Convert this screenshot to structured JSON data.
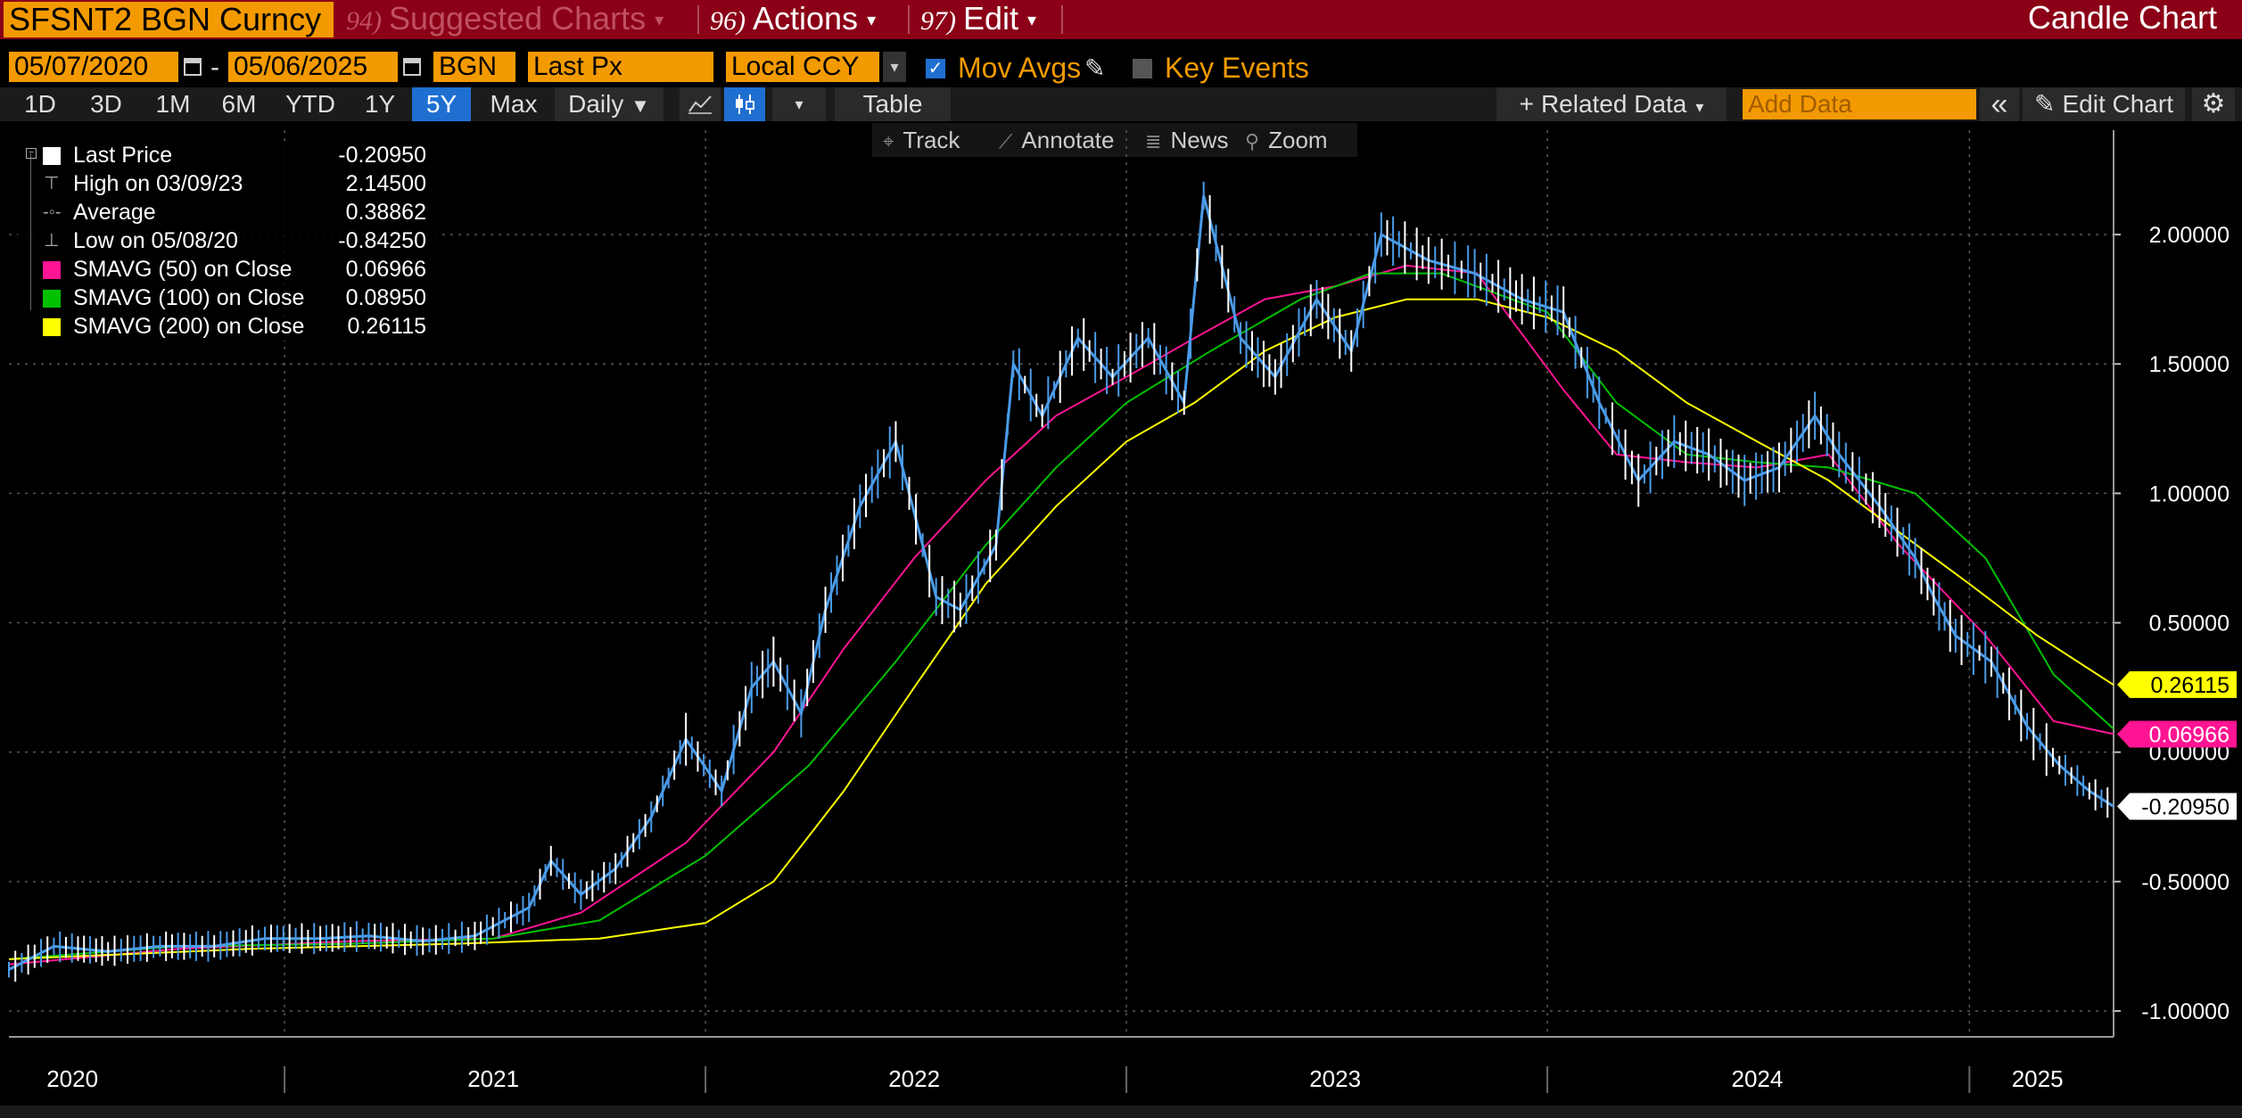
{
  "title_bar": {
    "ticker": "SFSNT2 BGN Curncy",
    "suggested": {
      "num": "94)",
      "label": "Suggested Charts"
    },
    "actions": {
      "num": "96)",
      "label": "Actions"
    },
    "edit": {
      "num": "97)",
      "label": "Edit"
    },
    "chart_title": "Candle Chart"
  },
  "settings": {
    "start_date": "05/07/2020",
    "end_date": "05/06/2025",
    "source": "BGN",
    "field": "Last Px",
    "currency": "Local CCY",
    "mov_avgs_label": "Mov Avgs",
    "mov_avgs_checked": true,
    "key_events_label": "Key Events",
    "key_events_checked": false
  },
  "toolbar": {
    "periods": [
      "1D",
      "3D",
      "1M",
      "6M",
      "YTD",
      "1Y",
      "5Y",
      "Max"
    ],
    "active_period": "5Y",
    "frequency": "Daily",
    "table_label": "Table",
    "related_data_label": "Related Data",
    "add_data_placeholder": "Add Data",
    "edit_chart_label": "Edit Chart"
  },
  "chart_tools": {
    "track": "Track",
    "annotate": "Annotate",
    "news": "News",
    "zoom": "Zoom"
  },
  "legend": [
    {
      "label": "Last Price",
      "value": "-0.20950",
      "color": "#ffffff",
      "kind": "box"
    },
    {
      "label": "High on 03/09/23",
      "value": "2.14500",
      "color": "#aaaaaa",
      "kind": "high"
    },
    {
      "label": "Average",
      "value": "0.38862",
      "color": "#aaaaaa",
      "kind": "avg"
    },
    {
      "label": "Low on 05/08/20",
      "value": "-0.84250",
      "color": "#aaaaaa",
      "kind": "low"
    },
    {
      "label": "SMAVG (50)  on Close",
      "value": "0.06966",
      "color": "#ff1493",
      "kind": "box"
    },
    {
      "label": "SMAVG (100)  on Close",
      "value": "0.08950",
      "color": "#00c000",
      "kind": "box"
    },
    {
      "label": "SMAVG (200)  on Close",
      "value": "0.26115",
      "color": "#ffff00",
      "kind": "box"
    }
  ],
  "chart_data": {
    "type": "line",
    "y_ticks": [
      "2.00000",
      "1.50000",
      "1.00000",
      "0.50000",
      "0.00000",
      "-0.50000",
      "-1.00000"
    ],
    "y_tick_values": [
      2.0,
      1.5,
      1.0,
      0.5,
      0.0,
      -0.5,
      -1.0
    ],
    "ylim": [
      -1.1,
      2.3
    ],
    "x_ticks": [
      "2020",
      "2021",
      "2022",
      "2023",
      "2024",
      "2025"
    ],
    "x_tick_dates": [
      "2020-01-01",
      "2021-01-01",
      "2022-01-01",
      "2023-01-01",
      "2024-01-01",
      "2025-01-01"
    ],
    "x_label_dates": [
      "2020-07-01",
      "2021-07-01",
      "2022-07-01",
      "2023-07-01",
      "2024-07-01",
      "2025-03-01"
    ],
    "xlim": [
      "2020-05-07",
      "2025-05-06"
    ],
    "grid": true,
    "last_labels": [
      {
        "text": "0.26115",
        "value": 0.26115,
        "bg": "#ffff00",
        "fg": "#000000"
      },
      {
        "text": "0.06966",
        "value": 0.06966,
        "bg": "#ff1493",
        "fg": "#ffffff"
      },
      {
        "text": "-0.20950",
        "value": -0.2095,
        "bg": "#ffffff",
        "fg": "#000000"
      }
    ],
    "series": [
      {
        "name": "Last Price",
        "color": "#4a9be8",
        "x": [
          "2020-05-07",
          "2020-06-15",
          "2020-08-01",
          "2020-09-15",
          "2020-11-01",
          "2020-12-15",
          "2021-02-01",
          "2021-03-15",
          "2021-05-01",
          "2021-06-15",
          "2021-08-01",
          "2021-08-20",
          "2021-09-15",
          "2021-10-15",
          "2021-11-15",
          "2021-12-15",
          "2022-01-15",
          "2022-02-10",
          "2022-03-01",
          "2022-03-25",
          "2022-04-15",
          "2022-05-15",
          "2022-06-15",
          "2022-07-20",
          "2022-08-10",
          "2022-09-10",
          "2022-09-25",
          "2022-10-20",
          "2022-11-20",
          "2022-12-20",
          "2023-01-20",
          "2023-02-20",
          "2023-03-09",
          "2023-04-10",
          "2023-05-10",
          "2023-06-15",
          "2023-07-15",
          "2023-08-10",
          "2023-09-20",
          "2023-10-30",
          "2023-12-10",
          "2024-01-15",
          "2024-02-15",
          "2024-03-20",
          "2024-04-20",
          "2024-05-20",
          "2024-06-20",
          "2024-07-20",
          "2024-08-20",
          "2024-09-10",
          "2024-10-15",
          "2024-11-15",
          "2024-12-01",
          "2024-12-20",
          "2025-01-20",
          "2025-02-20",
          "2025-03-20",
          "2025-04-15",
          "2025-05-06"
        ],
        "y": [
          -0.84,
          -0.75,
          -0.77,
          -0.75,
          -0.75,
          -0.72,
          -0.72,
          -0.71,
          -0.73,
          -0.71,
          -0.6,
          -0.42,
          -0.55,
          -0.45,
          -0.25,
          0.05,
          -0.15,
          0.25,
          0.35,
          0.15,
          0.55,
          0.95,
          1.2,
          0.6,
          0.55,
          0.8,
          1.5,
          1.3,
          1.6,
          1.45,
          1.6,
          1.35,
          2.15,
          1.6,
          1.45,
          1.75,
          1.55,
          2.0,
          1.9,
          1.85,
          1.75,
          1.7,
          1.35,
          1.05,
          1.2,
          1.15,
          1.05,
          1.1,
          1.3,
          1.15,
          0.95,
          0.75,
          0.6,
          0.45,
          0.35,
          0.1,
          -0.05,
          -0.15,
          -0.2095
        ]
      },
      {
        "name": "SMAVG (50)  on Close",
        "color": "#ff1493",
        "x": [
          "2020-05-07",
          "2020-10-01",
          "2021-03-01",
          "2021-07-01",
          "2021-09-15",
          "2021-12-15",
          "2022-03-01",
          "2022-05-01",
          "2022-07-01",
          "2022-09-01",
          "2022-11-01",
          "2023-01-01",
          "2023-03-01",
          "2023-05-01",
          "2023-07-01",
          "2023-09-01",
          "2023-11-01",
          "2024-01-15",
          "2024-03-01",
          "2024-05-01",
          "2024-07-01",
          "2024-09-01",
          "2024-11-01",
          "2025-01-15",
          "2025-03-15",
          "2025-05-06"
        ],
        "y": [
          -0.82,
          -0.76,
          -0.73,
          -0.72,
          -0.62,
          -0.35,
          0.0,
          0.4,
          0.75,
          1.05,
          1.3,
          1.45,
          1.6,
          1.75,
          1.8,
          1.88,
          1.85,
          1.4,
          1.15,
          1.12,
          1.1,
          1.15,
          0.8,
          0.45,
          0.12,
          0.07
        ]
      },
      {
        "name": "SMAVG (100)  on Close",
        "color": "#00c000",
        "x": [
          "2020-05-07",
          "2020-10-01",
          "2021-03-01",
          "2021-07-01",
          "2021-10-01",
          "2022-01-01",
          "2022-04-01",
          "2022-06-15",
          "2022-09-01",
          "2022-11-01",
          "2023-01-01",
          "2023-03-15",
          "2023-06-01",
          "2023-08-01",
          "2023-10-01",
          "2024-01-01",
          "2024-03-01",
          "2024-05-01",
          "2024-07-01",
          "2024-09-01",
          "2024-11-15",
          "2025-01-15",
          "2025-03-15",
          "2025-05-06"
        ],
        "y": [
          -0.8,
          -0.75,
          -0.74,
          -0.72,
          -0.65,
          -0.4,
          -0.05,
          0.35,
          0.8,
          1.1,
          1.35,
          1.55,
          1.75,
          1.85,
          1.85,
          1.7,
          1.35,
          1.15,
          1.12,
          1.1,
          1.0,
          0.75,
          0.3,
          0.09
        ]
      },
      {
        "name": "SMAVG (200)  on Close",
        "color": "#ffff00",
        "x": [
          "2020-05-07",
          "2020-12-01",
          "2021-06-01",
          "2021-10-01",
          "2022-01-01",
          "2022-03-01",
          "2022-05-01",
          "2022-07-01",
          "2022-09-01",
          "2022-11-01",
          "2023-01-01",
          "2023-03-01",
          "2023-05-01",
          "2023-07-01",
          "2023-09-01",
          "2023-11-01",
          "2024-01-01",
          "2024-03-01",
          "2024-05-01",
          "2024-07-01",
          "2024-09-01",
          "2024-11-01",
          "2025-01-01",
          "2025-03-01",
          "2025-05-06"
        ],
        "y": [
          -0.8,
          -0.76,
          -0.74,
          -0.72,
          -0.66,
          -0.5,
          -0.15,
          0.25,
          0.65,
          0.95,
          1.2,
          1.35,
          1.55,
          1.68,
          1.75,
          1.75,
          1.68,
          1.55,
          1.35,
          1.2,
          1.05,
          0.85,
          0.65,
          0.45,
          0.26
        ]
      }
    ]
  }
}
